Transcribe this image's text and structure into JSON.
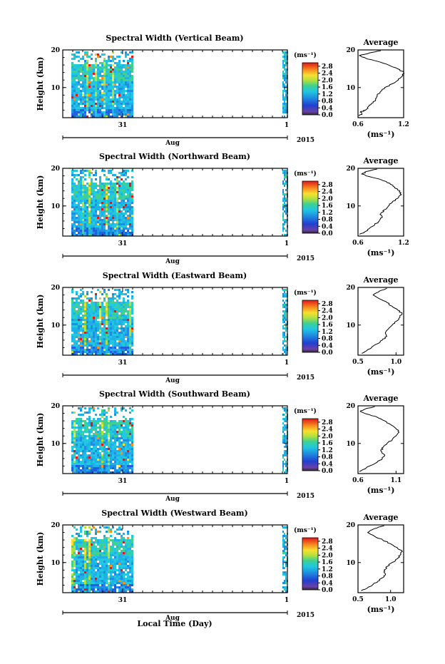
{
  "xlabel": "Local Time (Day)",
  "chart_data": [
    {
      "type": "heatmap",
      "title": "Spectral Width (Vertical Beam)",
      "ylabel": "Height (km)",
      "ylim": [
        2,
        20
      ],
      "yticks": [
        10,
        20
      ],
      "xticks": [
        "31",
        "1"
      ],
      "month_label": "Aug",
      "year_label": "2015",
      "colorbar": {
        "unit": "(ms⁻¹)",
        "ticks": [
          "0.0",
          "0.4",
          "0.8",
          "1.2",
          "1.6",
          "2.0",
          "2.4",
          "2.8"
        ],
        "range": [
          0,
          3.0
        ]
      },
      "average": {
        "title": "Average",
        "xlabel": "(ms⁻¹)",
        "xlim": [
          0.6,
          1.2
        ],
        "xticks": [
          "0.6",
          "1.2"
        ],
        "yticks": [
          10,
          20
        ],
        "profile": [
          [
            0.62,
            2.5
          ],
          [
            0.65,
            3
          ],
          [
            0.63,
            3.5
          ],
          [
            0.7,
            4
          ],
          [
            0.74,
            5
          ],
          [
            0.8,
            6
          ],
          [
            0.83,
            7
          ],
          [
            0.85,
            8
          ],
          [
            0.9,
            9
          ],
          [
            0.95,
            10
          ],
          [
            1.05,
            11
          ],
          [
            1.13,
            12
          ],
          [
            1.18,
            13
          ],
          [
            1.2,
            14
          ],
          [
            1.12,
            15
          ],
          [
            1.0,
            16
          ],
          [
            0.85,
            17
          ],
          [
            0.7,
            17.8
          ],
          [
            0.62,
            18.5
          ],
          [
            0.75,
            19.2
          ],
          [
            0.9,
            19.8
          ]
        ]
      }
    },
    {
      "type": "heatmap",
      "title": "Spectral Width (Northward Beam)",
      "ylabel": "Height (km)",
      "ylim": [
        2,
        20
      ],
      "yticks": [
        10,
        20
      ],
      "xticks": [
        "31",
        "1"
      ],
      "month_label": "Aug",
      "year_label": "2015",
      "colorbar": {
        "unit": "(ms⁻¹)",
        "ticks": [
          "0.0",
          "0.4",
          "0.8",
          "1.2",
          "1.6",
          "2.0",
          "2.4",
          "2.8"
        ],
        "range": [
          0,
          3.0
        ]
      },
      "average": {
        "title": "Average",
        "xlabel": "(ms⁻¹)",
        "xlim": [
          0.6,
          1.2
        ],
        "xticks": [
          "0.6",
          "1.2"
        ],
        "yticks": [
          10,
          20
        ],
        "profile": [
          [
            0.62,
            2.5
          ],
          [
            0.68,
            3
          ],
          [
            0.75,
            4
          ],
          [
            0.82,
            5
          ],
          [
            0.88,
            6
          ],
          [
            0.92,
            7
          ],
          [
            0.9,
            8
          ],
          [
            0.95,
            9
          ],
          [
            1.0,
            10
          ],
          [
            1.05,
            11
          ],
          [
            1.12,
            12
          ],
          [
            1.17,
            13
          ],
          [
            1.15,
            14
          ],
          [
            1.08,
            15
          ],
          [
            1.02,
            16
          ],
          [
            0.9,
            17
          ],
          [
            0.75,
            17.8
          ],
          [
            0.65,
            18.5
          ],
          [
            0.72,
            19.2
          ],
          [
            0.85,
            19.8
          ]
        ]
      }
    },
    {
      "type": "heatmap",
      "title": "Spectral Width (Eastward Beam)",
      "ylabel": "Height (km)",
      "ylim": [
        2,
        20
      ],
      "yticks": [
        10,
        20
      ],
      "xticks": [
        "31",
        "1"
      ],
      "month_label": "Aug",
      "year_label": "2015",
      "colorbar": {
        "unit": "(ms⁻¹)",
        "ticks": [
          "0.0",
          "0.4",
          "0.8",
          "1.2",
          "1.6",
          "2.0",
          "2.4",
          "2.8"
        ],
        "range": [
          0,
          3.0
        ]
      },
      "average": {
        "title": "Average",
        "xlabel": "(ms⁻¹)",
        "xlim": [
          0.5,
          1.1
        ],
        "xticks": [
          "0.5",
          "1.0"
        ],
        "yticks": [
          10,
          20
        ],
        "profile": [
          [
            0.55,
            2.5
          ],
          [
            0.6,
            3
          ],
          [
            0.68,
            4
          ],
          [
            0.75,
            5
          ],
          [
            0.82,
            6
          ],
          [
            0.88,
            7
          ],
          [
            0.86,
            8
          ],
          [
            0.9,
            9
          ],
          [
            0.95,
            10
          ],
          [
            1.0,
            11
          ],
          [
            1.05,
            12
          ],
          [
            1.08,
            13
          ],
          [
            1.02,
            14
          ],
          [
            0.95,
            15
          ],
          [
            0.88,
            16
          ],
          [
            0.78,
            17
          ],
          [
            0.7,
            18
          ],
          [
            0.78,
            19
          ],
          [
            0.88,
            19.8
          ]
        ]
      }
    },
    {
      "type": "heatmap",
      "title": "Spectral Width (Southward Beam)",
      "ylabel": "Height (km)",
      "ylim": [
        2,
        20
      ],
      "yticks": [
        10,
        20
      ],
      "xticks": [
        "31",
        "1"
      ],
      "month_label": "Aug",
      "year_label": "2015",
      "colorbar": {
        "unit": "(ms⁻¹)",
        "ticks": [
          "0.0",
          "0.4",
          "0.8",
          "1.2",
          "1.6",
          "2.0",
          "2.4",
          "2.8"
        ],
        "range": [
          0,
          3.0
        ]
      },
      "average": {
        "title": "Average",
        "xlabel": "(ms⁻¹)",
        "xlim": [
          0.6,
          1.2
        ],
        "xticks": [
          "0.6",
          "1.1"
        ],
        "yticks": [
          10,
          20
        ],
        "profile": [
          [
            0.62,
            2.5
          ],
          [
            0.66,
            3
          ],
          [
            0.75,
            4
          ],
          [
            0.85,
            5
          ],
          [
            0.92,
            6
          ],
          [
            0.95,
            7
          ],
          [
            0.9,
            8
          ],
          [
            0.93,
            9
          ],
          [
            0.98,
            10
          ],
          [
            1.05,
            11
          ],
          [
            1.1,
            12
          ],
          [
            1.14,
            13
          ],
          [
            1.1,
            14
          ],
          [
            1.03,
            15
          ],
          [
            0.95,
            16
          ],
          [
            0.85,
            17
          ],
          [
            0.72,
            17.8
          ],
          [
            0.63,
            18.5
          ],
          [
            0.7,
            19.2
          ],
          [
            0.82,
            19.8
          ]
        ]
      }
    },
    {
      "type": "heatmap",
      "title": "Spectral Width (Westward Beam)",
      "ylabel": "Height (km)",
      "ylim": [
        2,
        20
      ],
      "yticks": [
        10,
        20
      ],
      "xticks": [
        "31",
        "1"
      ],
      "month_label": "Aug",
      "year_label": "2015",
      "colorbar": {
        "unit": "(ms⁻¹)",
        "ticks": [
          "0.0",
          "0.4",
          "0.8",
          "1.2",
          "1.6",
          "2.0",
          "2.4",
          "2.8"
        ],
        "range": [
          0,
          3.0
        ]
      },
      "average": {
        "title": "Average",
        "xlabel": "(ms⁻¹)",
        "xlim": [
          0.5,
          1.2
        ],
        "xticks": [
          "0.5",
          "1.0"
        ],
        "yticks": [
          10,
          20
        ],
        "profile": [
          [
            0.55,
            2.5
          ],
          [
            0.62,
            3
          ],
          [
            0.72,
            4
          ],
          [
            0.8,
            5
          ],
          [
            0.88,
            6
          ],
          [
            0.92,
            7
          ],
          [
            0.9,
            8
          ],
          [
            0.95,
            9
          ],
          [
            1.02,
            10
          ],
          [
            1.1,
            11
          ],
          [
            1.15,
            12
          ],
          [
            1.18,
            13
          ],
          [
            1.1,
            14
          ],
          [
            1.0,
            15
          ],
          [
            0.88,
            16
          ],
          [
            0.75,
            17
          ],
          [
            0.65,
            18
          ],
          [
            0.75,
            19
          ],
          [
            0.9,
            19.8
          ]
        ]
      }
    }
  ]
}
